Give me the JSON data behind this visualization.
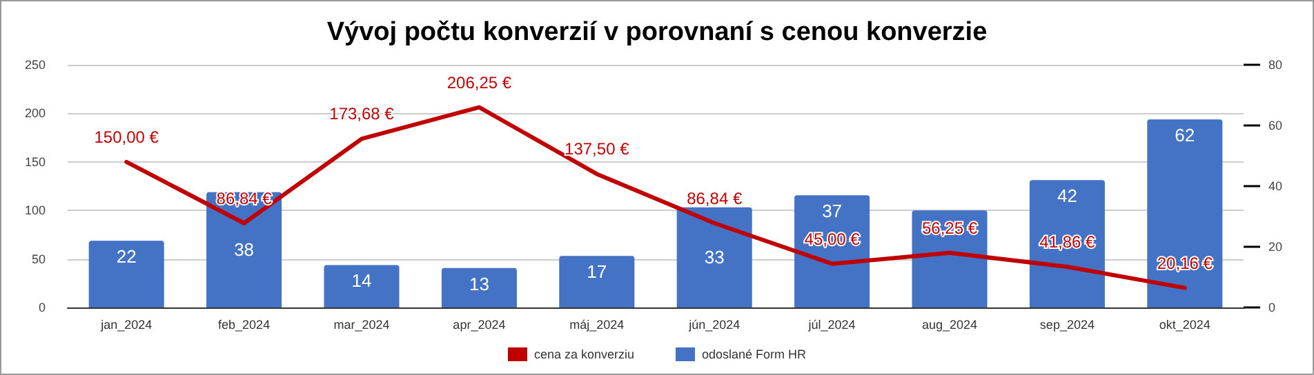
{
  "chart_data": {
    "type": "bar",
    "title": "Vývoj počtu konverzií v porovnaní s cenou konverzie",
    "categories": [
      "jan_2024",
      "feb_2024",
      "mar_2024",
      "apr_2024",
      "máj_2024",
      "jún_2024",
      "júl_2024",
      "aug_2024",
      "sep_2024",
      "okt_2024"
    ],
    "series": [
      {
        "name": "cena za konverziu",
        "type": "line",
        "color": "#c00000",
        "axis": "y",
        "values": [
          150.0,
          86.84,
          173.68,
          206.25,
          137.5,
          86.84,
          45.0,
          56.25,
          41.86,
          20.16
        ],
        "value_labels": [
          "150,00 €",
          "86,84 €",
          "173,68 €",
          "206,25 €",
          "137,50 €",
          "86,84 €",
          "45,00 €",
          "56,25 €",
          "41,86 €",
          "20,16 €"
        ]
      },
      {
        "name": "odoslané Form HR",
        "color": "#4472c4",
        "axis": "y2",
        "values": [
          22,
          38,
          14,
          13,
          17,
          33,
          37,
          32,
          42,
          62
        ],
        "value_labels": [
          "22",
          "38",
          "14",
          "13",
          "17",
          "33",
          "37",
          null,
          "42",
          "62"
        ]
      }
    ],
    "ylim": [
      0,
      250
    ],
    "yticks": [
      0,
      50,
      100,
      150,
      200,
      250
    ],
    "y2lim": [
      0,
      80
    ],
    "y2ticks": [
      0,
      20,
      40,
      60,
      80
    ],
    "grid": "y",
    "legend": "bottom",
    "marker": "none",
    "line_style": "solid"
  }
}
